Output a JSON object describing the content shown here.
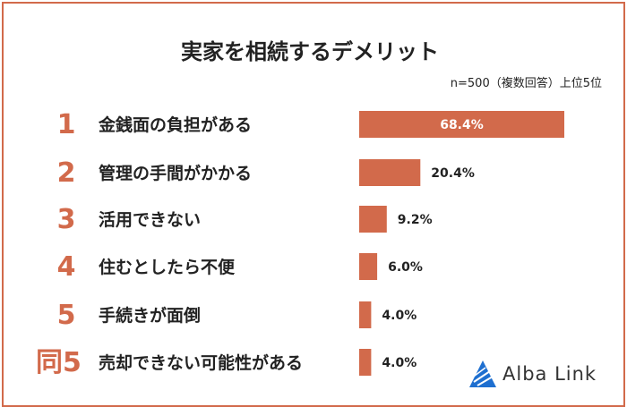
{
  "title": "実家を相続するデメリット",
  "note": "n=500（複数回答）上位5位",
  "logo_text": "Alba Link",
  "colors": {
    "accent": "#d26a4b",
    "bar": "#d26a4b",
    "logo_blue": "#1e6fd0"
  },
  "chart_data": {
    "type": "bar",
    "orientation": "horizontal",
    "title": "実家を相続するデメリット",
    "ranks": [
      "1",
      "2",
      "3",
      "4",
      "5",
      "同5"
    ],
    "categories": [
      "金銭面の負担がある",
      "管理の手間がかかる",
      "活用できない",
      "住むとしたら不便",
      "手続きが面倒",
      "売却できない可能性がある"
    ],
    "values": [
      68.4,
      20.4,
      9.2,
      6.0,
      4.0,
      4.0
    ],
    "value_labels": [
      "68.4%",
      "20.4%",
      "9.2%",
      "6.0%",
      "4.0%",
      "4.0%"
    ],
    "unit": "%",
    "xlim": [
      0,
      68.4
    ],
    "grid": false,
    "legend": "none"
  }
}
